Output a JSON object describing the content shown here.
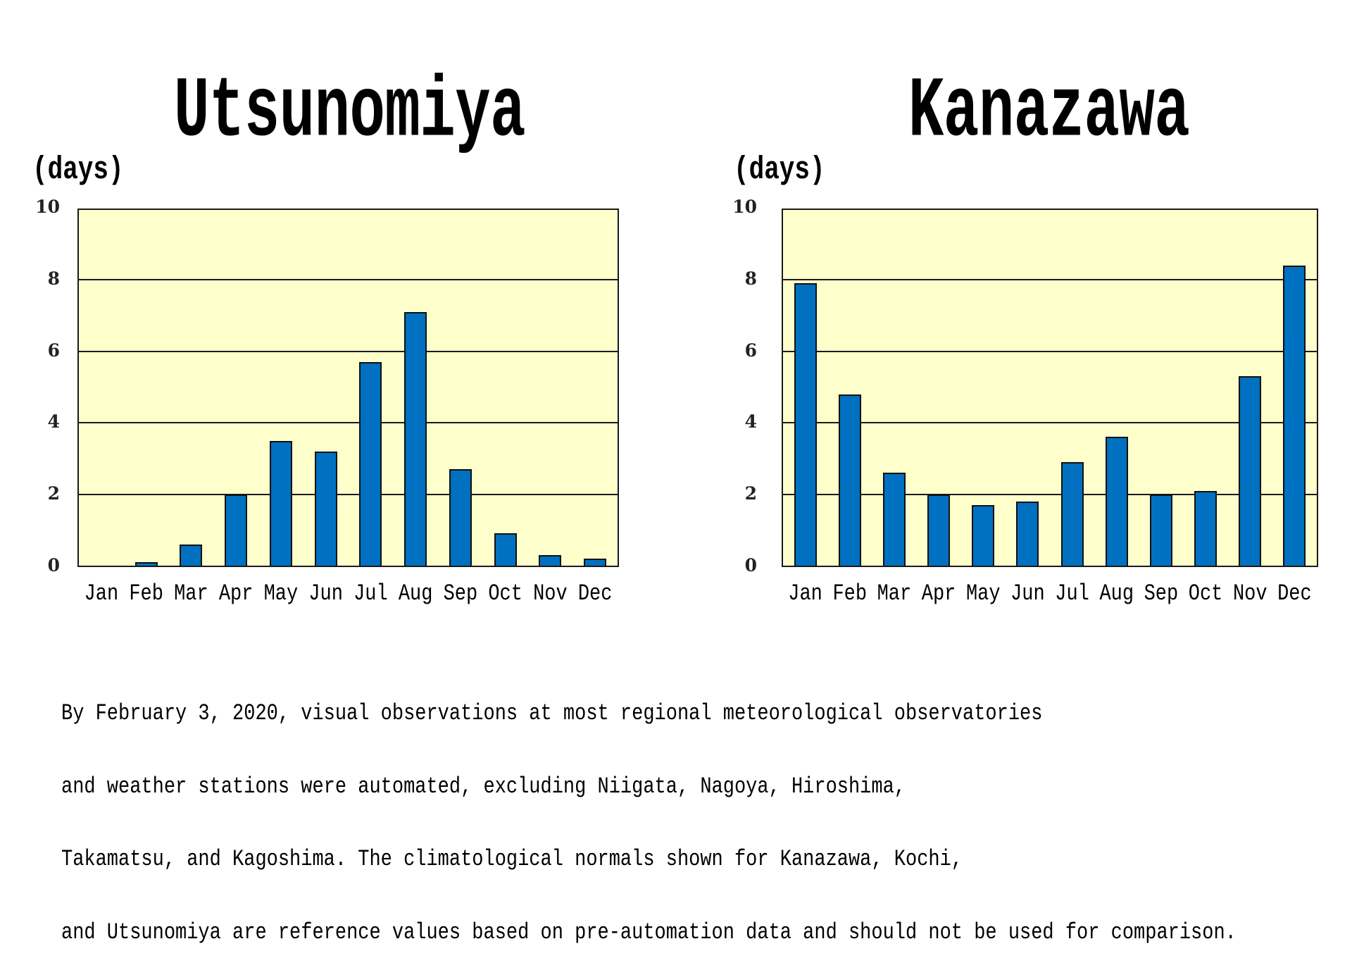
{
  "chart_data": [
    {
      "type": "bar",
      "title": "Utsunomiya",
      "ylabel": "(days)",
      "xlabel": "",
      "categories": [
        "Jan",
        "Feb",
        "Mar",
        "Apr",
        "May",
        "Jun",
        "Jul",
        "Aug",
        "Sep",
        "Oct",
        "Nov",
        "Dec"
      ],
      "values": [
        0.0,
        0.1,
        0.6,
        2.0,
        3.5,
        3.2,
        5.7,
        7.1,
        2.7,
        0.9,
        0.3,
        0.2
      ],
      "ylim": [
        0,
        10
      ],
      "yticks": [
        "0",
        "2",
        "4",
        "6",
        "8",
        "10"
      ],
      "grid": true,
      "legend": null,
      "colors": {
        "bar": "#0070c0",
        "plot_bg": "#ffffcc",
        "grid": "#1a1a1a"
      }
    },
    {
      "type": "bar",
      "title": "Kanazawa",
      "ylabel": "(days)",
      "xlabel": "",
      "categories": [
        "Jan",
        "Feb",
        "Mar",
        "Apr",
        "May",
        "Jun",
        "Jul",
        "Aug",
        "Sep",
        "Oct",
        "Nov",
        "Dec"
      ],
      "values": [
        7.9,
        4.8,
        2.6,
        2.0,
        1.7,
        1.8,
        2.9,
        3.6,
        2.0,
        2.1,
        5.3,
        8.4
      ],
      "ylim": [
        0,
        10
      ],
      "yticks": [
        "0",
        "2",
        "4",
        "6",
        "8",
        "10"
      ],
      "grid": true,
      "legend": null,
      "colors": {
        "bar": "#0070c0",
        "plot_bg": "#ffffcc",
        "grid": "#1a1a1a"
      }
    }
  ],
  "charts": {
    "left": {
      "title": "Utsunomiya",
      "unit": "(days)"
    },
    "right": {
      "title": "Kanazawa",
      "unit": "(days)"
    }
  },
  "footnote": {
    "lines": [
      "By February 3, 2020, visual observations at most regional meteorological observatories",
      "and weather stations were automated, excluding Niigata, Nagoya, Hiroshima,",
      "Takamatsu, and Kagoshima. The climatological normals shown for Kanazawa, Kochi,",
      "and Utsunomiya are reference values based on pre-automation data and should not be used for comparison."
    ]
  }
}
